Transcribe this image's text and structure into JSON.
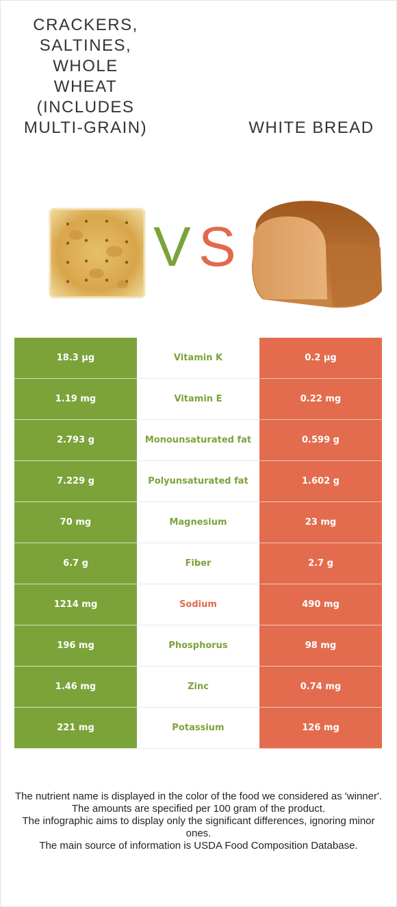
{
  "header": {
    "left_title": "CRACKERS, SALTINES, WHOLE WHEAT (INCLUDES MULTI-GRAIN)",
    "right_title": "WHITE BREAD",
    "vs_v": "V",
    "vs_s": "S"
  },
  "colors": {
    "left_food": "#7ba33a",
    "right_food": "#e46c4e"
  },
  "rows": [
    {
      "left": "18.3 µg",
      "nutrient": "Vitamin K",
      "right": "0.2 µg",
      "winner": "left"
    },
    {
      "left": "1.19 mg",
      "nutrient": "Vitamin E",
      "right": "0.22 mg",
      "winner": "left"
    },
    {
      "left": "2.793 g",
      "nutrient": "Monounsaturated fat",
      "right": "0.599 g",
      "winner": "left"
    },
    {
      "left": "7.229 g",
      "nutrient": "Polyunsaturated fat",
      "right": "1.602 g",
      "winner": "left"
    },
    {
      "left": "70 mg",
      "nutrient": "Magnesium",
      "right": "23 mg",
      "winner": "left"
    },
    {
      "left": "6.7 g",
      "nutrient": "Fiber",
      "right": "2.7 g",
      "winner": "left"
    },
    {
      "left": "1214 mg",
      "nutrient": "Sodium",
      "right": "490 mg",
      "winner": "right"
    },
    {
      "left": "196 mg",
      "nutrient": "Phosphorus",
      "right": "98 mg",
      "winner": "left"
    },
    {
      "left": "1.46 mg",
      "nutrient": "Zinc",
      "right": "0.74 mg",
      "winner": "left"
    },
    {
      "left": "221 mg",
      "nutrient": "Potassium",
      "right": "126 mg",
      "winner": "left"
    }
  ],
  "footnote": {
    "line1": "The nutrient name is displayed in the color of the food we considered as 'winner'.",
    "line2": "The amounts are specified per 100 gram of the product.",
    "line3": "The infographic aims to display only the significant differences, ignoring minor ones.",
    "line4": "The main source of information is USDA Food Composition Database."
  }
}
